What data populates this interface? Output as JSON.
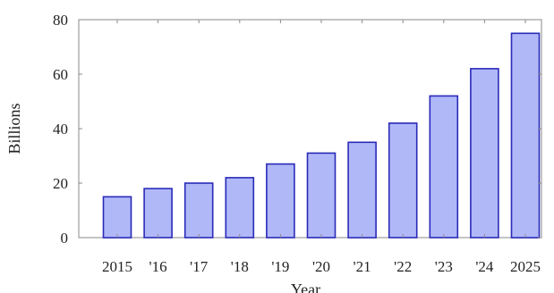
{
  "chart_data": {
    "type": "bar",
    "categories": [
      "2015",
      "'16",
      "'17",
      "'18",
      "'19",
      "'20",
      "'21",
      "'22",
      "'23",
      "'24",
      "2025"
    ],
    "values": [
      15,
      18,
      20,
      22,
      27,
      31,
      35,
      42,
      52,
      62,
      75
    ],
    "xlabel": "Year",
    "ylabel": "Billions",
    "ylim": [
      0,
      80
    ],
    "yticks": [
      "0",
      "20",
      "40",
      "60",
      "80"
    ],
    "grid": false,
    "colors": {
      "bar_fill": "#b0b8f8",
      "bar_stroke": "#2a2ab8",
      "axis": "#8a8a8a"
    }
  }
}
